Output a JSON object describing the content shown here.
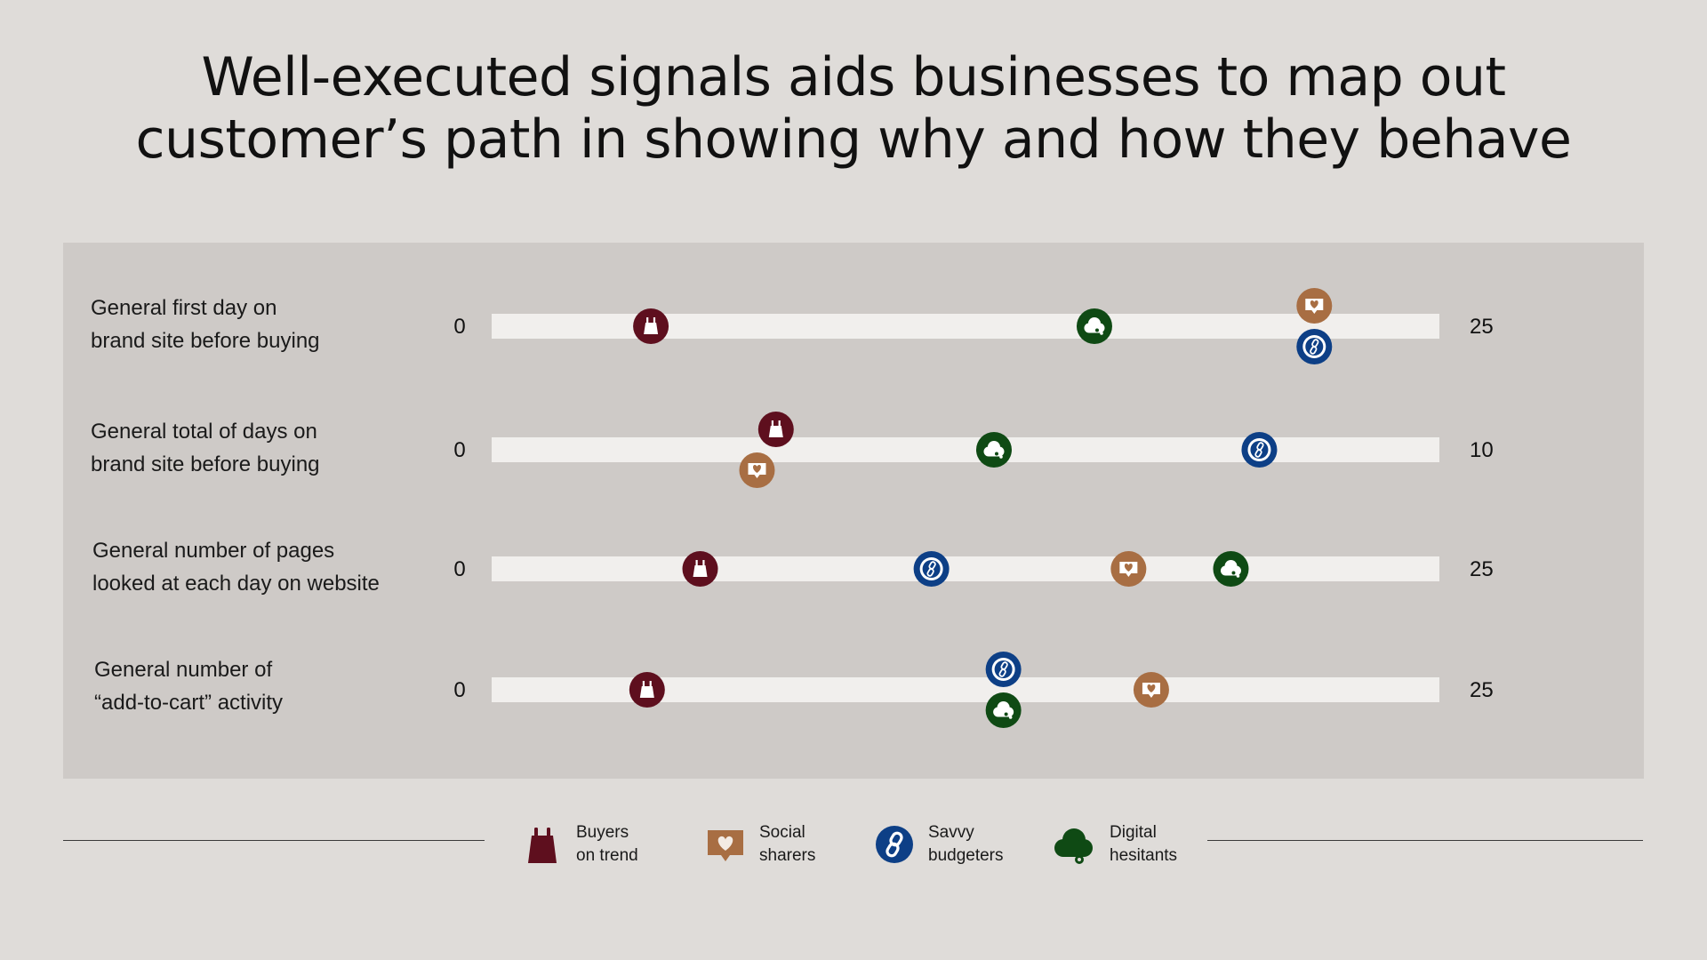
{
  "title": {
    "line1": "Well-executed signals aids businesses to map out",
    "line2": "customer’s path in showing why and how they behave"
  },
  "colors": {
    "background": "#dfdcd9",
    "panel": "#cecac7",
    "track": "#f1efed",
    "buyers_on_trend": "#5e0f1e",
    "social_sharers": "#a86e43",
    "savvy_budgeters": "#0d3f86",
    "digital_hesitants": "#0f4a14"
  },
  "legend": [
    {
      "key": "buyers_on_trend",
      "icon": "shopping-bag-icon",
      "line1": "Buyers",
      "line2": "on trend"
    },
    {
      "key": "social_sharers",
      "icon": "heart-message-icon",
      "line1": "Social",
      "line2": "sharers"
    },
    {
      "key": "savvy_budgeters",
      "icon": "chain-link-icon",
      "line1": "Savvy",
      "line2": "budgeters"
    },
    {
      "key": "digital_hesitants",
      "icon": "thought-cloud-icon",
      "line1": "Digital",
      "line2": "hesitants"
    }
  ],
  "chart_data": {
    "type": "scatter",
    "title": "Well-executed signals aids businesses to map out customer’s path in showing why and how they behave",
    "legend_position": "bottom",
    "grid": false,
    "series_order": [
      "buyers_on_trend",
      "social_sharers",
      "savvy_budgeters",
      "digital_hesitants"
    ],
    "rows": [
      {
        "label_line1": "General first day on",
        "label_line2": "brand site before buying",
        "min": 0,
        "max": 25,
        "min_label": "0",
        "max_label": "25",
        "values": {
          "buyers_on_trend": 4.2,
          "social_sharers": 21.7,
          "savvy_budgeters": 21.7,
          "digital_hesitants": 15.9
        }
      },
      {
        "label_line1": "General total of days on",
        "label_line2": "brand site before buying",
        "min": 0,
        "max": 10,
        "min_label": "0",
        "max_label": "10",
        "values": {
          "buyers_on_trend": 3.0,
          "social_sharers": 2.8,
          "savvy_budgeters": 8.1,
          "digital_hesitants": 5.3
        }
      },
      {
        "label_line1": "General number of pages",
        "label_line2": "looked at each day on website",
        "min": 0,
        "max": 25,
        "min_label": "0",
        "max_label": "25",
        "values": {
          "buyers_on_trend": 5.5,
          "social_sharers": 16.8,
          "savvy_budgeters": 11.6,
          "digital_hesitants": 19.5
        }
      },
      {
        "label_line1": "General number of",
        "label_line2": "“add-to-cart” activity",
        "min": 0,
        "max": 25,
        "min_label": "0",
        "max_label": "25",
        "values": {
          "buyers_on_trend": 4.1,
          "social_sharers": 17.4,
          "savvy_budgeters": 13.5,
          "digital_hesitants": 13.5
        }
      }
    ]
  }
}
